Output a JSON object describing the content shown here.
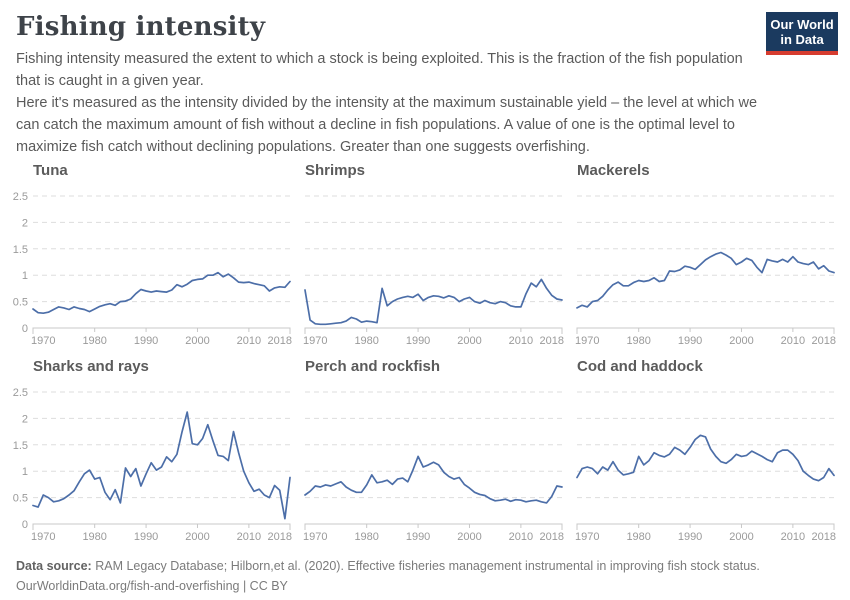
{
  "header": {
    "title": "Fishing intensity",
    "subtitle_1": "Fishing intensity measured the extent to which a stock is being exploited. This is the fraction of the fish population that is caught in a given year.",
    "subtitle_2": "Here it's measured as the intensity divided by the intensity at the maximum sustainable yield – the level at which we can catch the maximum amount of fish without a decline in fish populations. A value of one is the optimal level to maximize fish catch without declining populations. Greater than one suggests overfishing."
  },
  "logo": {
    "line1": "Our World",
    "line2": "in Data",
    "bg_color": "#1b3a5f",
    "accent_color": "#d63c2f"
  },
  "footer": {
    "source_label": "Data source:",
    "source_text": " RAM Legacy Database; Hilborn,et al. (2020). Effective fisheries management instrumental in improving fish stock status.",
    "link_line": "OurWorldinData.org/fish-and-overfishing | CC BY"
  },
  "chart_data": {
    "type": "line",
    "layout": "small multiples, 2 rows x 3 columns, shared axes",
    "line_color": "#4c6ea8",
    "grid": true,
    "ylim": [
      0,
      2.5
    ],
    "y_ticks": [
      0,
      0.5,
      1,
      1.5,
      2,
      2.5
    ],
    "x_ticks": [
      1970,
      1980,
      1990,
      2000,
      2010,
      2018
    ],
    "x": [
      1968,
      1969,
      1970,
      1971,
      1972,
      1973,
      1974,
      1975,
      1976,
      1977,
      1978,
      1979,
      1980,
      1981,
      1982,
      1983,
      1984,
      1985,
      1986,
      1987,
      1988,
      1989,
      1990,
      1991,
      1992,
      1993,
      1994,
      1995,
      1996,
      1997,
      1998,
      1999,
      2000,
      2001,
      2002,
      2003,
      2004,
      2005,
      2006,
      2007,
      2008,
      2009,
      2010,
      2011,
      2012,
      2013,
      2014,
      2015,
      2016,
      2017,
      2018
    ],
    "series": [
      {
        "name": "Tuna",
        "values": [
          0.36,
          0.29,
          0.28,
          0.3,
          0.35,
          0.4,
          0.38,
          0.35,
          0.4,
          0.37,
          0.35,
          0.31,
          0.36,
          0.41,
          0.44,
          0.46,
          0.43,
          0.5,
          0.51,
          0.55,
          0.65,
          0.73,
          0.7,
          0.68,
          0.7,
          0.69,
          0.68,
          0.72,
          0.82,
          0.78,
          0.83,
          0.9,
          0.92,
          0.93,
          1.0,
          1.0,
          1.05,
          0.97,
          1.02,
          0.95,
          0.87,
          0.86,
          0.87,
          0.84,
          0.82,
          0.8,
          0.7,
          0.76,
          0.78,
          0.77,
          0.88
        ]
      },
      {
        "name": "Shrimps",
        "values": [
          0.72,
          0.15,
          0.08,
          0.07,
          0.07,
          0.08,
          0.09,
          0.1,
          0.13,
          0.2,
          0.17,
          0.11,
          0.13,
          0.12,
          0.1,
          0.75,
          0.42,
          0.5,
          0.55,
          0.58,
          0.6,
          0.58,
          0.64,
          0.52,
          0.58,
          0.61,
          0.6,
          0.57,
          0.61,
          0.58,
          0.5,
          0.55,
          0.58,
          0.5,
          0.47,
          0.52,
          0.48,
          0.46,
          0.5,
          0.48,
          0.42,
          0.4,
          0.4,
          0.65,
          0.85,
          0.78,
          0.92,
          0.75,
          0.62,
          0.55,
          0.53
        ]
      },
      {
        "name": "Mackerels",
        "values": [
          0.38,
          0.43,
          0.4,
          0.5,
          0.52,
          0.6,
          0.72,
          0.82,
          0.87,
          0.8,
          0.8,
          0.86,
          0.9,
          0.88,
          0.9,
          0.95,
          0.88,
          0.9,
          1.08,
          1.07,
          1.1,
          1.17,
          1.15,
          1.11,
          1.2,
          1.29,
          1.35,
          1.4,
          1.43,
          1.38,
          1.32,
          1.2,
          1.25,
          1.32,
          1.28,
          1.15,
          1.05,
          1.3,
          1.27,
          1.25,
          1.3,
          1.25,
          1.35,
          1.25,
          1.22,
          1.2,
          1.25,
          1.12,
          1.18,
          1.08,
          1.05
        ]
      },
      {
        "name": "Sharks and rays",
        "values": [
          0.35,
          0.32,
          0.55,
          0.5,
          0.42,
          0.44,
          0.48,
          0.55,
          0.63,
          0.8,
          0.95,
          1.02,
          0.85,
          0.88,
          0.6,
          0.46,
          0.65,
          0.4,
          1.06,
          0.9,
          1.05,
          0.72,
          0.95,
          1.16,
          1.02,
          1.08,
          1.27,
          1.18,
          1.32,
          1.75,
          2.12,
          1.52,
          1.5,
          1.62,
          1.88,
          1.58,
          1.3,
          1.28,
          1.2,
          1.75,
          1.35,
          1.0,
          0.78,
          0.62,
          0.66,
          0.55,
          0.5,
          0.73,
          0.64,
          0.1,
          0.88
        ]
      },
      {
        "name": "Perch and rockfish",
        "values": [
          0.55,
          0.62,
          0.72,
          0.7,
          0.74,
          0.72,
          0.76,
          0.8,
          0.7,
          0.64,
          0.6,
          0.6,
          0.74,
          0.93,
          0.78,
          0.8,
          0.83,
          0.75,
          0.85,
          0.87,
          0.8,
          1.02,
          1.28,
          1.08,
          1.12,
          1.17,
          1.12,
          0.98,
          0.9,
          0.85,
          0.88,
          0.75,
          0.68,
          0.6,
          0.56,
          0.54,
          0.48,
          0.44,
          0.45,
          0.47,
          0.43,
          0.46,
          0.45,
          0.42,
          0.44,
          0.45,
          0.42,
          0.4,
          0.52,
          0.72,
          0.7
        ]
      },
      {
        "name": "Cod and haddock",
        "values": [
          0.88,
          1.05,
          1.08,
          1.05,
          0.95,
          1.08,
          1.02,
          1.18,
          1.02,
          0.93,
          0.95,
          0.98,
          1.28,
          1.12,
          1.2,
          1.35,
          1.3,
          1.27,
          1.32,
          1.45,
          1.4,
          1.32,
          1.45,
          1.6,
          1.68,
          1.65,
          1.42,
          1.28,
          1.18,
          1.15,
          1.22,
          1.32,
          1.28,
          1.3,
          1.38,
          1.33,
          1.28,
          1.22,
          1.18,
          1.35,
          1.4,
          1.4,
          1.32,
          1.2,
          1.0,
          0.92,
          0.85,
          0.82,
          0.88,
          1.05,
          0.92
        ]
      }
    ]
  }
}
